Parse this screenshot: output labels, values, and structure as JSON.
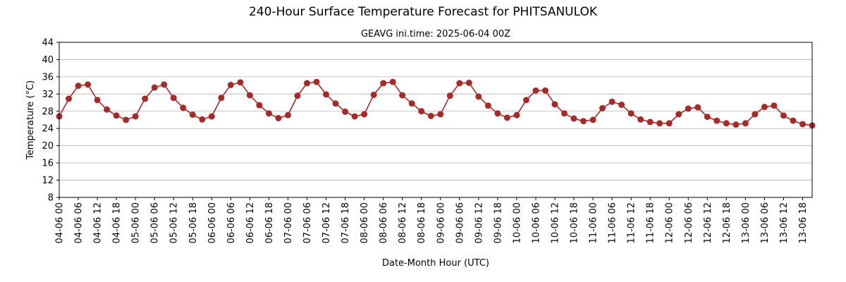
{
  "chart_data": {
    "type": "line",
    "title": "240-Hour Surface Temperature Forecast for PHITSANULOK",
    "subtitle": "GEAVG ini.time: 2025-06-04 00Z",
    "xlabel": "Date-Month Hour (UTC)",
    "ylabel": "Temperature (°C)",
    "ylim": [
      8,
      44
    ],
    "yticks": [
      8,
      12,
      16,
      20,
      24,
      28,
      32,
      36,
      40,
      44
    ],
    "x_ticks": [
      "04-06 00",
      "04-06 06",
      "04-06 12",
      "04-06 18",
      "05-06 00",
      "05-06 06",
      "05-06 12",
      "05-06 18",
      "06-06 00",
      "06-06 06",
      "06-06 12",
      "06-06 18",
      "07-06 00",
      "07-06 06",
      "07-06 12",
      "07-06 18",
      "08-06 00",
      "08-06 06",
      "08-06 12",
      "08-06 18",
      "09-06 00",
      "09-06 06",
      "09-06 12",
      "09-06 18",
      "10-06 00",
      "10-06 06",
      "10-06 12",
      "10-06 18",
      "11-06 00",
      "11-06 06",
      "11-06 12",
      "11-06 18",
      "12-06 00",
      "12-06 06",
      "12-06 12",
      "12-06 18",
      "13-06 00",
      "13-06 06",
      "13-06 12",
      "13-06 18"
    ],
    "x_step_hours": 3,
    "grid": "horizontal",
    "line_color": "#a52a2a",
    "series": [
      {
        "values": [
          26.8,
          30.9,
          33.9,
          34.2,
          30.6,
          28.4,
          27.0,
          26.0,
          26.8,
          30.9,
          33.5,
          34.2,
          31.1,
          28.8,
          27.2,
          26.1,
          26.8,
          31.1,
          34.1,
          34.7,
          31.7,
          29.4,
          27.5,
          26.4,
          27.1,
          31.6,
          34.5,
          34.8,
          31.9,
          29.8,
          27.9,
          26.8,
          27.3,
          31.8,
          34.5,
          34.8,
          31.7,
          29.8,
          28.0,
          26.9,
          27.3,
          31.6,
          34.5,
          34.6,
          31.4,
          29.3,
          27.5,
          26.5,
          27.1,
          30.6,
          32.8,
          32.8,
          29.6,
          27.5,
          26.3,
          25.7,
          26.0,
          28.7,
          30.2,
          29.5,
          27.5,
          26.1,
          25.5,
          25.2,
          25.2,
          27.3,
          28.6,
          28.9,
          26.7,
          25.8,
          25.2,
          24.9,
          25.2,
          27.3,
          29.0,
          29.3,
          27.0,
          25.8,
          25.0,
          24.7
        ]
      }
    ]
  }
}
